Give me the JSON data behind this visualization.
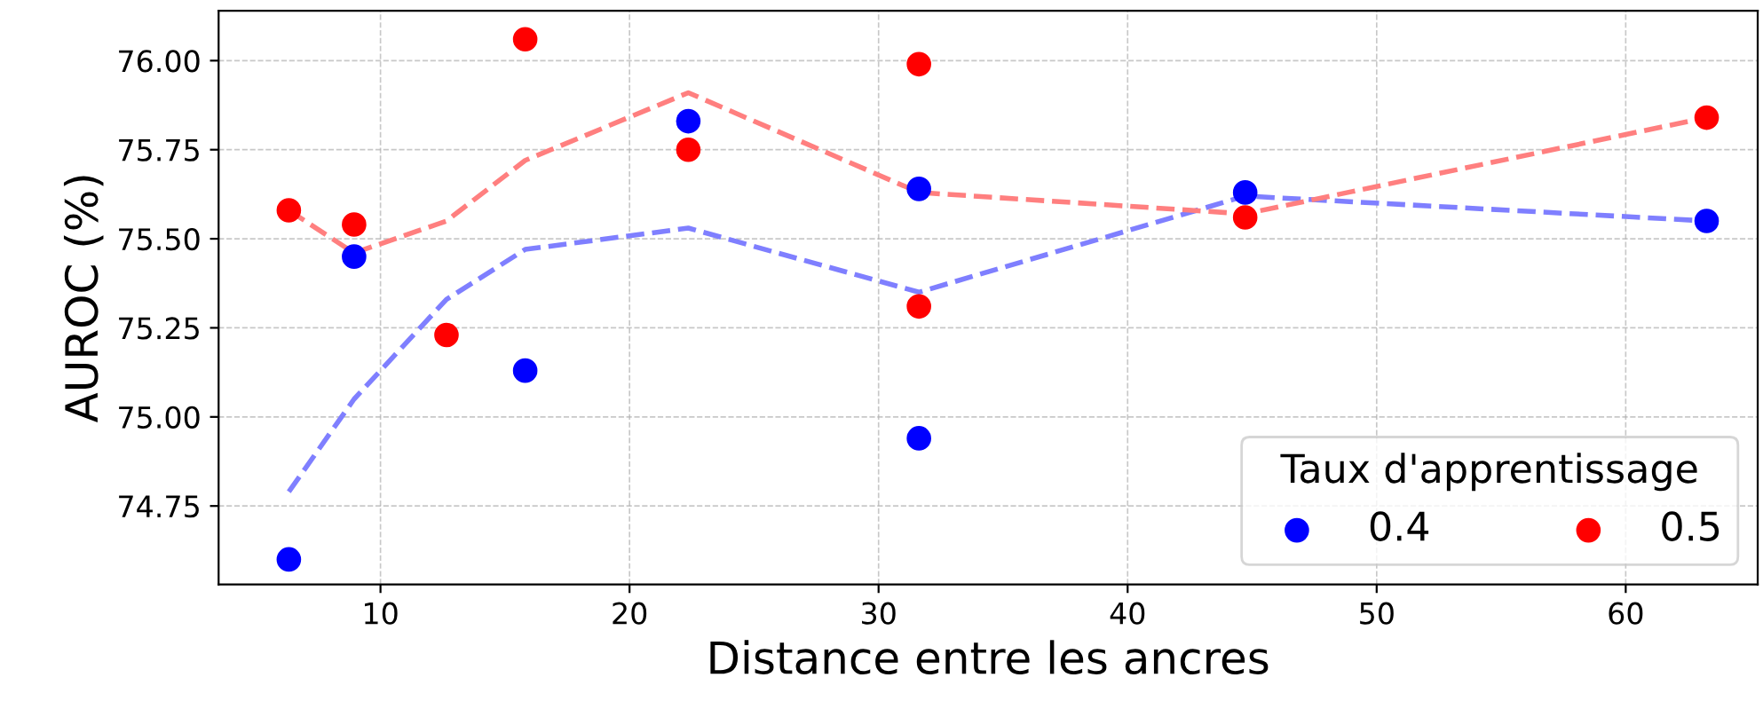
{
  "chart_data": {
    "type": "scatter",
    "xlabel": "Distance entre les ancres",
    "ylabel": "AUROC (%)",
    "legend_title": "Taux d'apprentissage",
    "legend": "bottom right",
    "grid": true,
    "xlim": [
      3.5,
      65.3
    ],
    "ylim": [
      74.53,
      76.14
    ],
    "xticks": [
      10,
      20,
      30,
      40,
      50,
      60
    ],
    "yticks": [
      {
        "value": 74.75,
        "label": "74.75"
      },
      {
        "value": 75.0,
        "label": "75.00"
      },
      {
        "value": 75.25,
        "label": "75.25"
      },
      {
        "value": 75.5,
        "label": "75.50"
      },
      {
        "value": 75.75,
        "label": "75.75"
      },
      {
        "value": 76.0,
        "label": "76.00"
      }
    ],
    "series": [
      {
        "type": "line",
        "marker": "none",
        "line_style": "dashed",
        "color": "#7f7fff",
        "x": [
          6.32,
          8.94,
          12.65,
          15.81,
          22.36,
          31.62,
          44.72,
          63.25
        ],
        "values": [
          74.79,
          75.05,
          75.33,
          75.47,
          75.53,
          75.35,
          75.62,
          75.55
        ]
      },
      {
        "type": "line",
        "marker": "none",
        "line_style": "dashed",
        "color": "#ff7f7f",
        "x": [
          6.32,
          8.94,
          12.65,
          15.81,
          22.36,
          31.62,
          44.72,
          63.25
        ],
        "values": [
          75.58,
          75.46,
          75.55,
          75.72,
          75.91,
          75.63,
          75.57,
          75.84
        ]
      },
      {
        "marker": "circle",
        "name": "0.4",
        "color": "#0000ff",
        "x": [
          6.32,
          8.94,
          15.81,
          22.36,
          31.62,
          31.62,
          44.72,
          63.25
        ],
        "values": [
          74.6,
          75.45,
          75.13,
          75.83,
          75.64,
          74.94,
          75.63,
          75.55
        ]
      },
      {
        "marker": "circle",
        "name": "0.5",
        "color": "#ff0000",
        "x": [
          6.32,
          8.94,
          12.65,
          15.81,
          22.36,
          31.62,
          31.62,
          44.72,
          63.25
        ],
        "values": [
          75.58,
          75.54,
          75.23,
          76.06,
          75.75,
          75.99,
          75.31,
          75.56,
          75.84
        ]
      }
    ]
  }
}
